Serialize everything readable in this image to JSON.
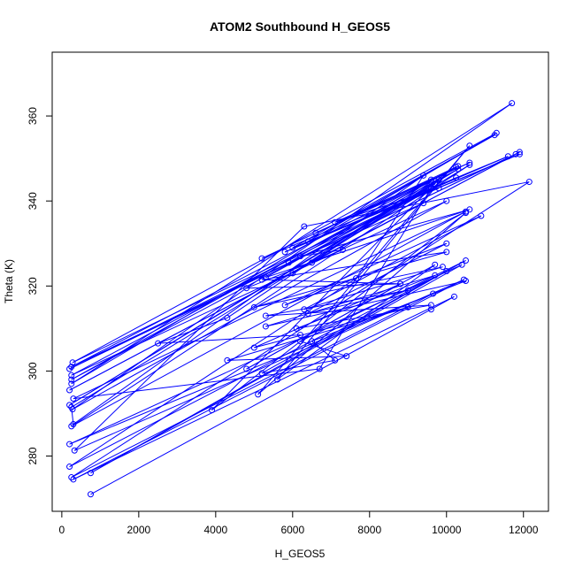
{
  "chart_data": {
    "type": "scatter",
    "title": "ATOM2 Southbound H_GEOS5",
    "xlabel": "H_GEOS5",
    "ylabel": "Theta (K)",
    "xlim": [
      -250,
      12650
    ],
    "ylim": [
      267,
      375
    ],
    "xticks": [
      0,
      2000,
      4000,
      6000,
      8000,
      10000,
      12000
    ],
    "yticks": [
      280,
      300,
      320,
      340,
      360
    ],
    "xtick_labels": [
      "0",
      "2000",
      "4000",
      "6000",
      "8000",
      "10000",
      "12000"
    ],
    "ytick_labels": [
      "280",
      "300",
      "320",
      "340",
      "360"
    ],
    "grid": false,
    "legend": "none",
    "series_color": "#0000ff",
    "line_connected": true,
    "points": [
      [
        750,
        271
      ],
      [
        9600,
        314.5
      ],
      [
        10200,
        317.5
      ],
      [
        300,
        274.5
      ],
      [
        10450,
        321.5
      ],
      [
        330,
        281.3
      ],
      [
        6300,
        334
      ],
      [
        12150,
        344.5
      ],
      [
        250,
        275
      ],
      [
        9650,
        318.2
      ],
      [
        200,
        282.8
      ],
      [
        10400,
        325
      ],
      [
        750,
        276
      ],
      [
        10000,
        323.5
      ],
      [
        200,
        277.5
      ],
      [
        7650,
        321.8
      ],
      [
        9400,
        346
      ],
      [
        300,
        287.5
      ],
      [
        250,
        291.5
      ],
      [
        10600,
        348.5
      ],
      [
        250,
        287
      ],
      [
        10500,
        337.5
      ],
      [
        300,
        293.5
      ],
      [
        6700,
        300.5
      ],
      [
        9600,
        343
      ],
      [
        250,
        298
      ],
      [
        10300,
        348.2
      ],
      [
        250,
        301
      ],
      [
        11800,
        351
      ],
      [
        200,
        295.5
      ],
      [
        11900,
        351.5
      ],
      [
        200,
        300.5
      ],
      [
        10250,
        345.5
      ],
      [
        280,
        302
      ],
      [
        11300,
        356
      ],
      [
        250,
        297
      ],
      [
        11700,
        363
      ],
      [
        280,
        291
      ],
      [
        10000,
        340
      ],
      [
        250,
        299
      ],
      [
        10300,
        347.5
      ],
      [
        200,
        292
      ],
      [
        9800,
        345
      ],
      [
        3900,
        290.8
      ],
      [
        10500,
        337.2
      ],
      [
        5100,
        294.5
      ],
      [
        10600,
        353
      ],
      [
        5600,
        298
      ],
      [
        9700,
        325
      ],
      [
        4800,
        300.5
      ],
      [
        8800,
        320.5
      ],
      [
        5000,
        305.5
      ],
      [
        9000,
        315
      ],
      [
        4300,
        302.5
      ],
      [
        7400,
        303.5
      ],
      [
        6200,
        307
      ],
      [
        10500,
        326
      ],
      [
        5200,
        299.5
      ],
      [
        7100,
        302.5
      ],
      [
        6500,
        307
      ],
      [
        10500,
        321.2
      ],
      [
        5300,
        310.5
      ],
      [
        9700,
        322.5
      ],
      [
        6100,
        310
      ],
      [
        9600,
        315.5
      ],
      [
        5300,
        313
      ],
      [
        9000,
        319
      ],
      [
        6400,
        313.5
      ],
      [
        10000,
        330
      ],
      [
        5800,
        315.5
      ],
      [
        10900,
        336.5
      ],
      [
        6300,
        314.5
      ],
      [
        9900,
        324.5
      ],
      [
        5000,
        315
      ],
      [
        10000,
        328
      ],
      [
        5200,
        321.5
      ],
      [
        8800,
        320.5
      ],
      [
        4800,
        319.5
      ],
      [
        7300,
        328.5
      ],
      [
        6200,
        327
      ],
      [
        10600,
        338
      ],
      [
        5300,
        322
      ],
      [
        9700,
        344
      ],
      [
        6000,
        323
      ],
      [
        9600,
        345
      ],
      [
        5900,
        325.5
      ],
      [
        9400,
        339.5
      ],
      [
        6500,
        325.5
      ],
      [
        10250,
        348
      ],
      [
        5200,
        326.5
      ],
      [
        11600,
        350.5
      ],
      [
        5800,
        328
      ],
      [
        11900,
        351
      ],
      [
        6400,
        330.5
      ],
      [
        11250,
        355.5
      ],
      [
        6000,
        329
      ],
      [
        9800,
        343
      ],
      [
        7100,
        335
      ],
      [
        10600,
        349
      ],
      [
        6600,
        332.5
      ],
      [
        9600,
        344.5
      ],
      [
        4300,
        312.5
      ],
      [
        2500,
        306.5
      ],
      [
        6200,
        308.5
      ]
    ]
  }
}
